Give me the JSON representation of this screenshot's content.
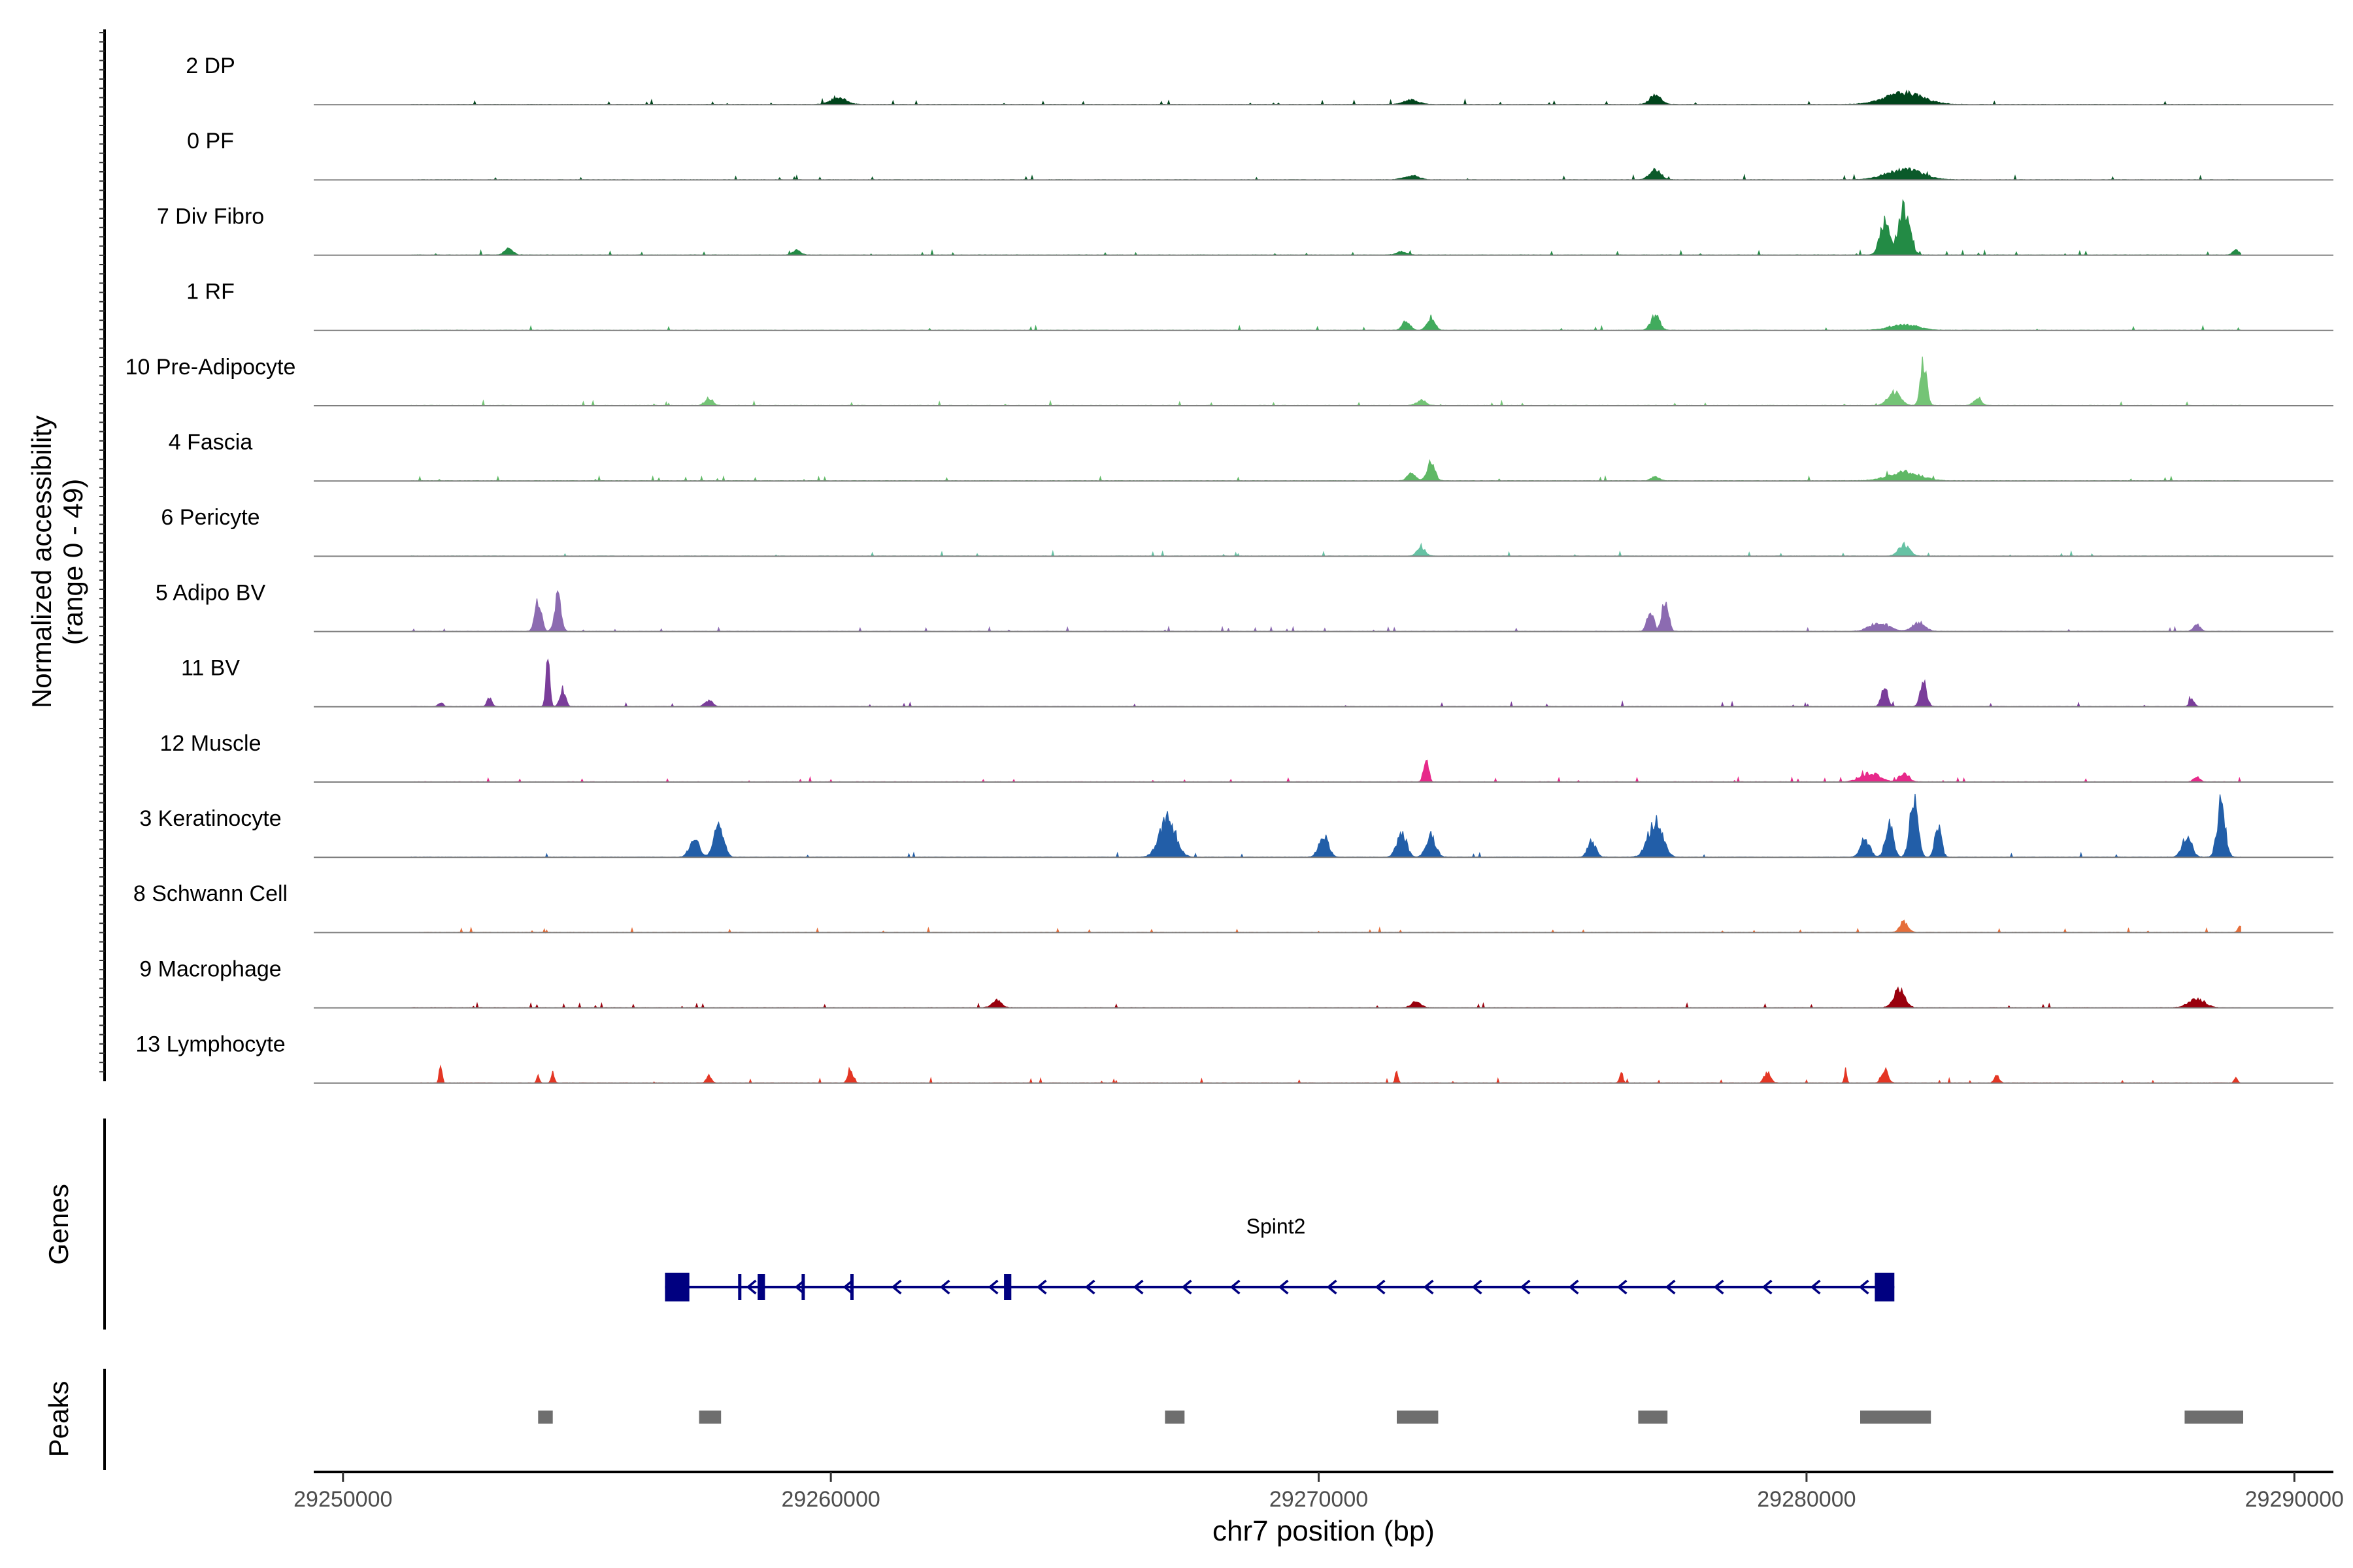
{
  "chart_data": {
    "type": "area",
    "title": "",
    "ylabel": [
      "Normalized accessibility",
      "(range 0 - 49)"
    ],
    "xlabel": "chr7 position (bp)",
    "xlim": [
      29249400,
      29290800
    ],
    "ylim": [
      0,
      49
    ],
    "x_ticks": [
      29250000,
      29260000,
      29270000,
      29280000,
      29290000
    ],
    "x_tick_labels": [
      "29250000",
      "29260000",
      "29270000",
      "29280000",
      "29290000"
    ],
    "tracks": [
      {
        "name": "2 DP",
        "color": "#00441b",
        "peaks": [
          [
            29260150,
            0.09,
            500
          ],
          [
            29271900,
            0.06,
            450
          ],
          [
            29276900,
            0.13,
            350
          ],
          [
            29282000,
            0.16,
            1200
          ]
        ]
      },
      {
        "name": "0 PF",
        "color": "#0b5a2a",
        "peaks": [
          [
            29271900,
            0.06,
            450
          ],
          [
            29276900,
            0.14,
            350
          ],
          [
            29282000,
            0.14,
            1100
          ]
        ]
      },
      {
        "name": "7 Div Fibro",
        "color": "#238b45",
        "peaks": [
          [
            29253400,
            0.1,
            250
          ],
          [
            29259300,
            0.07,
            250
          ],
          [
            29271700,
            0.05,
            300
          ],
          [
            29281600,
            0.45,
            300
          ],
          [
            29282000,
            0.65,
            350
          ],
          [
            29288800,
            0.07,
            200
          ]
        ]
      },
      {
        "name": "1 RF",
        "color": "#41ab5d",
        "peaks": [
          [
            29271800,
            0.13,
            250
          ],
          [
            29272300,
            0.18,
            250
          ],
          [
            29276900,
            0.2,
            280
          ],
          [
            29282000,
            0.08,
            900
          ]
        ]
      },
      {
        "name": "10 Pre-Adipocyte",
        "color": "#74c476",
        "peaks": [
          [
            29257500,
            0.1,
            250
          ],
          [
            29272100,
            0.07,
            300
          ],
          [
            29281800,
            0.18,
            400
          ],
          [
            29282400,
            0.6,
            200
          ],
          [
            29283500,
            0.1,
            250
          ]
        ]
      },
      {
        "name": "4 Fascia",
        "color": "#5fb865",
        "peaks": [
          [
            29271900,
            0.12,
            250
          ],
          [
            29272300,
            0.25,
            250
          ],
          [
            29276900,
            0.06,
            250
          ],
          [
            29282000,
            0.12,
            1000
          ]
        ]
      },
      {
        "name": "6 Pericyte",
        "color": "#66c2a4",
        "peaks": [
          [
            29272100,
            0.12,
            250
          ],
          [
            29282000,
            0.16,
            350
          ]
        ]
      },
      {
        "name": "5 Adipo BV",
        "color": "#8c6bb1",
        "peaks": [
          [
            29254000,
            0.45,
            200
          ],
          [
            29254400,
            0.5,
            200
          ],
          [
            29276800,
            0.3,
            200
          ],
          [
            29277100,
            0.45,
            200
          ],
          [
            29281500,
            0.12,
            600
          ],
          [
            29282300,
            0.12,
            400
          ],
          [
            29288000,
            0.1,
            200
          ]
        ]
      },
      {
        "name": "11 BV",
        "color": "#7a3d9a",
        "peaks": [
          [
            29254200,
            0.75,
            120
          ],
          [
            29254500,
            0.25,
            180
          ],
          [
            29252000,
            0.06,
            150
          ],
          [
            29253000,
            0.12,
            150
          ],
          [
            29257500,
            0.08,
            250
          ],
          [
            29281600,
            0.28,
            200
          ],
          [
            29282400,
            0.35,
            200
          ],
          [
            29287900,
            0.1,
            150
          ]
        ]
      },
      {
        "name": "12 Muscle",
        "color": "#e7298a",
        "peaks": [
          [
            29272200,
            0.35,
            150
          ],
          [
            29281300,
            0.12,
            600
          ],
          [
            29282000,
            0.12,
            300
          ],
          [
            29288000,
            0.08,
            200
          ]
        ]
      },
      {
        "name": "3 Keratinocyte",
        "color": "#225ea8",
        "peaks": [
          [
            29257200,
            0.25,
            300
          ],
          [
            29257700,
            0.5,
            300
          ],
          [
            29266900,
            0.55,
            500
          ],
          [
            29270100,
            0.3,
            300
          ],
          [
            29271700,
            0.35,
            300
          ],
          [
            29272300,
            0.3,
            300
          ],
          [
            29275600,
            0.22,
            250
          ],
          [
            29276900,
            0.5,
            450
          ],
          [
            29281200,
            0.25,
            300
          ],
          [
            29281700,
            0.45,
            250
          ],
          [
            29282200,
            0.85,
            250
          ],
          [
            29282700,
            0.45,
            200
          ],
          [
            29287800,
            0.3,
            300
          ],
          [
            29288500,
            0.75,
            250
          ]
        ]
      },
      {
        "name": "8 Schwann Cell",
        "color": "#e66e3a",
        "peaks": [
          [
            29282000,
            0.15,
            250
          ],
          [
            29288900,
            0.1,
            150
          ]
        ]
      },
      {
        "name": "9 Macrophage",
        "color": "#99000d",
        "peaks": [
          [
            29281900,
            0.25,
            350
          ],
          [
            29288000,
            0.12,
            500
          ],
          [
            29263400,
            0.1,
            300
          ],
          [
            29272000,
            0.08,
            300
          ]
        ]
      },
      {
        "name": "13 Lymphocyte",
        "color": "#e43624",
        "peaks": [
          [
            29252000,
            0.3,
            80
          ],
          [
            29254300,
            0.15,
            100
          ],
          [
            29254000,
            0.12,
            80
          ],
          [
            29257500,
            0.1,
            150
          ],
          [
            29260400,
            0.2,
            150
          ],
          [
            29271600,
            0.18,
            80
          ],
          [
            29276200,
            0.15,
            100
          ],
          [
            29279200,
            0.15,
            200
          ],
          [
            29280800,
            0.18,
            80
          ],
          [
            29281600,
            0.2,
            200
          ],
          [
            29283900,
            0.1,
            150
          ],
          [
            29288800,
            0.08,
            100
          ]
        ]
      }
    ],
    "genes_label": "Genes",
    "gene": {
      "name": "Spint2",
      "strand": "-",
      "start": 29256600,
      "end": 29281800,
      "exons": [
        [
          29256600,
          29257100
        ],
        [
          29258100,
          29258150
        ],
        [
          29258500,
          29258650
        ],
        [
          29259400,
          29259450
        ],
        [
          29260400,
          29260450
        ],
        [
          29263550,
          29263700
        ],
        [
          29281400,
          29281800
        ]
      ]
    },
    "peaks_label": "Peaks",
    "peak_regions": [
      [
        29254000,
        29254300
      ],
      [
        29257300,
        29257750
      ],
      [
        29266850,
        29267250
      ],
      [
        29271600,
        29272450
      ],
      [
        29276550,
        29277150
      ],
      [
        29281100,
        29282550
      ],
      [
        29287750,
        29288950
      ]
    ]
  }
}
